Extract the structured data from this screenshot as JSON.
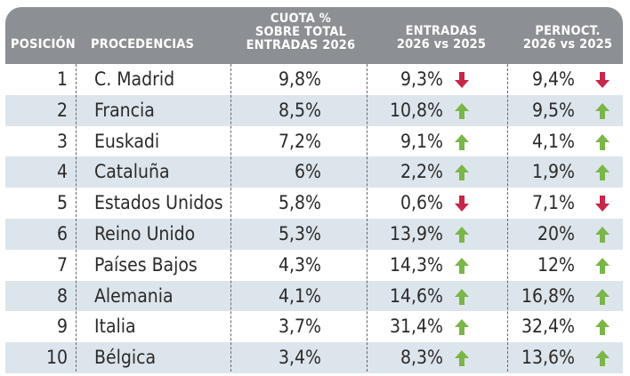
{
  "header": {
    "posicion": "POSICIÓN",
    "procedencias": "PROCEDENCIAS",
    "cuota_l1": "CUOTA %",
    "cuota_l2": "SOBRE TOTAL",
    "cuota_l3": "ENTRADAS 2026",
    "entradas_l1": "ENTRADAS",
    "entradas_l2": "2026 vs 2025",
    "pernoct_l1": "PERNOCT.",
    "pernoct_l2": "2026 vs 2025"
  },
  "colors": {
    "header_bg": "#8c8f93",
    "row_alt": "#dde5ec",
    "arrow_up": "#7ab648",
    "arrow_down": "#c8264a"
  },
  "rows": [
    {
      "pos": "1",
      "proc": "C. Madrid",
      "cuota": "9,8%",
      "entradas": "9,3%",
      "entradas_trend": "down",
      "pernoct": "9,4%",
      "pernoct_trend": "down"
    },
    {
      "pos": "2",
      "proc": "Francia",
      "cuota": "8,5%",
      "entradas": "10,8%",
      "entradas_trend": "up",
      "pernoct": "9,5%",
      "pernoct_trend": "up"
    },
    {
      "pos": "3",
      "proc": "Euskadi",
      "cuota": "7,2%",
      "entradas": "9,1%",
      "entradas_trend": "up",
      "pernoct": "4,1%",
      "pernoct_trend": "up"
    },
    {
      "pos": "4",
      "proc": "Cataluña",
      "cuota": "6%",
      "entradas": "2,2%",
      "entradas_trend": "up",
      "pernoct": "1,9%",
      "pernoct_trend": "up"
    },
    {
      "pos": "5",
      "proc": "Estados Unidos",
      "cuota": "5,8%",
      "entradas": "0,6%",
      "entradas_trend": "down",
      "pernoct": "7,1%",
      "pernoct_trend": "down"
    },
    {
      "pos": "6",
      "proc": "Reino Unido",
      "cuota": "5,3%",
      "entradas": "13,9%",
      "entradas_trend": "up",
      "pernoct": "20%",
      "pernoct_trend": "up"
    },
    {
      "pos": "7",
      "proc": "Países Bajos",
      "cuota": "4,3%",
      "entradas": "14,3%",
      "entradas_trend": "up",
      "pernoct": "12%",
      "pernoct_trend": "up"
    },
    {
      "pos": "8",
      "proc": "Alemania",
      "cuota": "4,1%",
      "entradas": "14,6%",
      "entradas_trend": "up",
      "pernoct": "16,8%",
      "pernoct_trend": "up"
    },
    {
      "pos": "9",
      "proc": "Italia",
      "cuota": "3,7%",
      "entradas": "31,4%",
      "entradas_trend": "up",
      "pernoct": "32,4%",
      "pernoct_trend": "up"
    },
    {
      "pos": "10",
      "proc": "Bélgica",
      "cuota": "3,4%",
      "entradas": "8,3%",
      "entradas_trend": "up",
      "pernoct": "13,6%",
      "pernoct_trend": "up"
    }
  ]
}
